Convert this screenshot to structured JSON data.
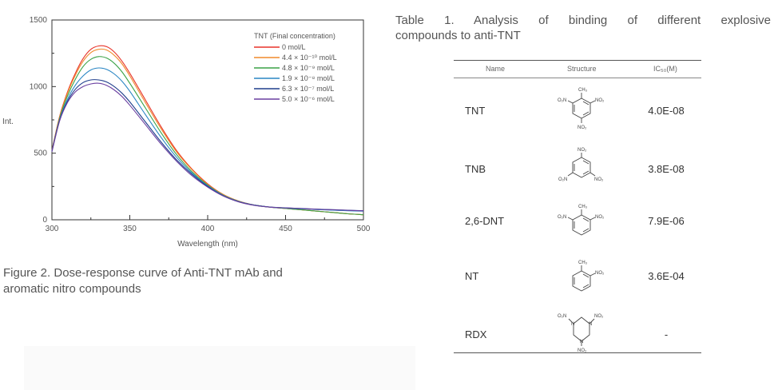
{
  "chart_data": {
    "type": "line",
    "title": "",
    "xlabel": "Wavelength (nm)",
    "ylabel": "Int.",
    "xlim": [
      300,
      500
    ],
    "ylim": [
      0,
      1500
    ],
    "x_ticks": [
      "300",
      "350",
      "400",
      "450",
      "500"
    ],
    "y_ticks": [
      "0",
      "500",
      "1000",
      "1500"
    ],
    "grid": false,
    "legend_placement": "top-right",
    "legend_title": "TNT (Final concentration)",
    "x": [
      300,
      305,
      310,
      315,
      320,
      325,
      330,
      335,
      340,
      345,
      350,
      360,
      370,
      380,
      390,
      400,
      410,
      420,
      430,
      440,
      450,
      460,
      470,
      480,
      490,
      500
    ],
    "series": [
      {
        "name": "0 mol/L",
        "color": "#e8342a",
        "values": [
          520,
          780,
          960,
          1100,
          1210,
          1280,
          1305,
          1300,
          1260,
          1190,
          1100,
          900,
          700,
          520,
          380,
          270,
          190,
          140,
          110,
          95,
          85,
          75,
          65,
          55,
          45,
          38
        ]
      },
      {
        "name": "4.4 × 10⁻¹⁰ mol/L",
        "color": "#f08a2c",
        "values": [
          520,
          775,
          950,
          1085,
          1190,
          1255,
          1280,
          1275,
          1235,
          1170,
          1080,
          880,
          685,
          510,
          375,
          265,
          190,
          140,
          110,
          95,
          85,
          75,
          65,
          55,
          45,
          38
        ]
      },
      {
        "name": "4.8 × 10⁻⁹ mol/L",
        "color": "#3aa246",
        "values": [
          515,
          765,
          930,
          1055,
          1150,
          1205,
          1225,
          1215,
          1175,
          1110,
          1025,
          840,
          655,
          490,
          360,
          260,
          185,
          138,
          110,
          95,
          85,
          75,
          65,
          55,
          45,
          38
        ]
      },
      {
        "name": "1.9 × 10⁻⁸ mol/L",
        "color": "#2a86c4",
        "values": [
          515,
          755,
          905,
          1010,
          1080,
          1125,
          1140,
          1130,
          1095,
          1040,
          965,
          790,
          620,
          470,
          350,
          255,
          183,
          137,
          110,
          95,
          88,
          82,
          77,
          72,
          68,
          65
        ]
      },
      {
        "name": "6.3 × 10⁻⁷ mol/L",
        "color": "#1f3e8c",
        "values": [
          515,
          750,
          890,
          980,
          1030,
          1050,
          1050,
          1035,
          1000,
          950,
          885,
          735,
          585,
          450,
          340,
          250,
          180,
          135,
          110,
          96,
          90,
          85,
          80,
          76,
          72,
          68
        ]
      },
      {
        "name": "5.0 × 10⁻⁶ mol/L",
        "color": "#6a3fa0",
        "values": [
          510,
          745,
          880,
          960,
          1000,
          1020,
          1025,
          1010,
          975,
          925,
          860,
          715,
          570,
          440,
          330,
          245,
          178,
          134,
          108,
          95,
          89,
          84,
          79,
          75,
          71,
          67
        ]
      }
    ]
  },
  "figure_caption": {
    "line1": "Figure 2. Dose-response curve of Anti-TNT mAb and",
    "line2": "aromatic nitro compounds"
  },
  "table": {
    "caption_line1": "Table 1. Analysis of binding of different explosive",
    "caption_line2": "compounds to anti-TNT",
    "headers": {
      "name": "Name",
      "structure": "Structure",
      "ic50": "IC₅₀(M)"
    },
    "rows": [
      {
        "name": "TNT",
        "ic50": "4.0E-08",
        "structure_icon": "tnt-structure-icon"
      },
      {
        "name": "TNB",
        "ic50": "3.8E-08",
        "structure_icon": "tnb-structure-icon"
      },
      {
        "name": "2,6-DNT",
        "ic50": "7.9E-06",
        "structure_icon": "dnt-structure-icon"
      },
      {
        "name": "NT",
        "ic50": "3.6E-04",
        "structure_icon": "nt-structure-icon"
      },
      {
        "name": "RDX",
        "ic50": "-",
        "structure_icon": "rdx-structure-icon"
      }
    ],
    "chem_labels": {
      "no2": "NO₂",
      "o2n": "O₂N",
      "ch3": "CH₃",
      "n": "N"
    }
  }
}
